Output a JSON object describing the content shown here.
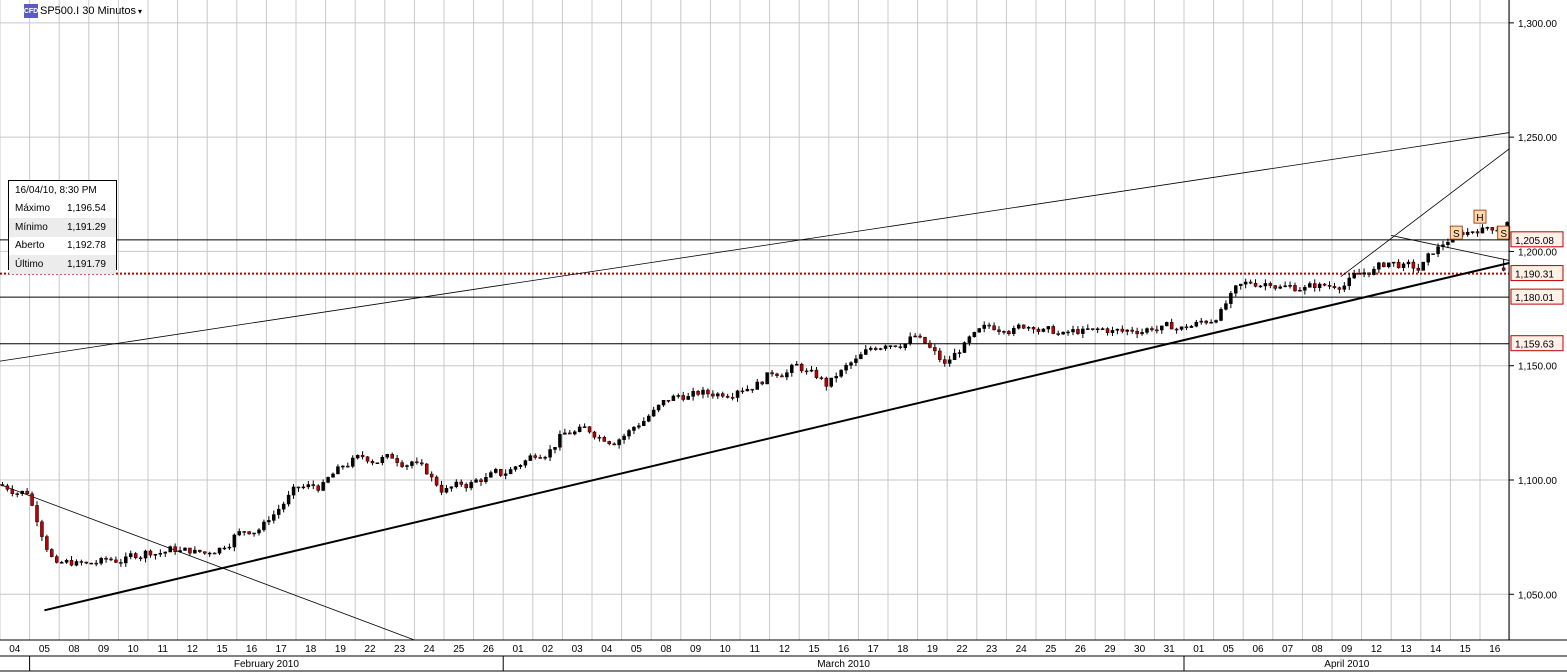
{
  "header": {
    "symbol_icon": "CFD",
    "title": "SP500.I 30 Minutos",
    "caret": "▾"
  },
  "colors": {
    "grid": "#c8c8c8",
    "up": "#000000",
    "down": "#c00000",
    "dotted": "#b00000",
    "label_border": "#c00000",
    "label_bg": "#fff0e8",
    "marker_bg": "#ffd8b0",
    "marker_border": "#a05020"
  },
  "tooltip": {
    "date": "16/04/10, 8:30 PM",
    "rows": [
      {
        "label": "Máximo",
        "value": "1,196.54"
      },
      {
        "label": "Mínimo",
        "value": "1,191.29"
      },
      {
        "label": "Aberto",
        "value": "1,192.78"
      },
      {
        "label": "Último",
        "value": "1,191.79"
      }
    ]
  },
  "chart_data": {
    "type": "candlestick",
    "instrument": "SP500.I",
    "timeframe": "30 Minutos",
    "ylim": [
      1030,
      1310
    ],
    "y_ticks": [
      "1,050.00",
      "1,100.00",
      "1,150.00",
      "1,200.00",
      "1,250.00",
      "1,300.00"
    ],
    "y_tick_values": [
      1050,
      1100,
      1150,
      1200,
      1250,
      1300
    ],
    "x_day_labels": [
      "04",
      "05",
      "08",
      "09",
      "10",
      "11",
      "12",
      "15",
      "16",
      "17",
      "18",
      "19",
      "22",
      "23",
      "24",
      "25",
      "26",
      "01",
      "02",
      "03",
      "04",
      "05",
      "08",
      "09",
      "10",
      "11",
      "12",
      "15",
      "16",
      "17",
      "18",
      "19",
      "22",
      "23",
      "24",
      "25",
      "26",
      "29",
      "30",
      "31",
      "01",
      "05",
      "06",
      "07",
      "08",
      "09",
      "12",
      "13",
      "14",
      "15",
      "16"
    ],
    "x_months": [
      {
        "label": "February 2010",
        "start": 1,
        "end": 17
      },
      {
        "label": "March 2010",
        "start": 17,
        "end": 40
      },
      {
        "label": "April 2010",
        "start": 40,
        "end": 51
      }
    ],
    "series_close_by_day": [
      1095,
      1062,
      1063,
      1065,
      1068,
      1070,
      1068,
      1075,
      1080,
      1095,
      1097,
      1108,
      1109,
      1108,
      1096,
      1098,
      1103,
      1110,
      1118,
      1122,
      1118,
      1128,
      1137,
      1138,
      1140,
      1145,
      1150,
      1142,
      1152,
      1160,
      1163,
      1150,
      1163,
      1167,
      1168,
      1163,
      1165,
      1165,
      1167,
      1166,
      1170,
      1185,
      1187,
      1184,
      1185,
      1190,
      1195,
      1192,
      1205,
      1210,
      1212
    ],
    "horizontal_levels": [
      {
        "value": 1205.08,
        "label": "1,205.08"
      },
      {
        "value": 1190.31,
        "label": "1,190.31",
        "style": "dotted"
      },
      {
        "value": 1180.01,
        "label": "1,180.01"
      },
      {
        "value": 1159.63,
        "label": "1,159.63"
      }
    ],
    "markers": [
      {
        "day": 49.2,
        "value": 1208,
        "label": "S"
      },
      {
        "day": 50.0,
        "value": 1215,
        "label": "H"
      },
      {
        "day": 50.8,
        "value": 1208,
        "label": "S"
      }
    ],
    "last_candle": {
      "day": 50.8,
      "open": 1192.78,
      "high": 1196.54,
      "low": 1191.29,
      "close": 1191.79
    }
  }
}
